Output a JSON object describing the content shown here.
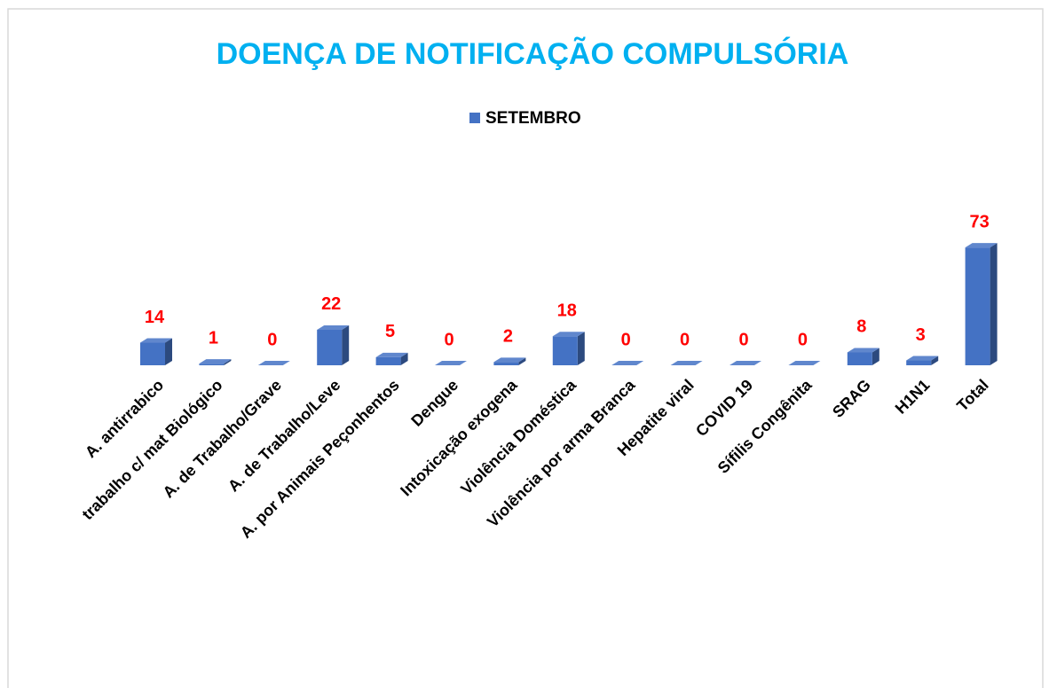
{
  "chart_data": {
    "type": "bar",
    "title": "DOENÇA DE NOTIFICAÇÃO COMPULSÓRIA",
    "categories": [
      "A. antirrabico",
      "trabalho c/ mat Biológico",
      "A. de Trabalho/Grave",
      "A. de Trabalho/Leve",
      "A. por Animais Peçonhentos",
      "Dengue",
      "Intoxicação exogena",
      "Violência Doméstica",
      "Violência por arma Branca",
      "Hepatite viral",
      "COVID 19",
      "Sífilis Congênita",
      "SRAG",
      "H1N1",
      "Total"
    ],
    "series": [
      {
        "name": "SETEMBRO",
        "color": "#4472c4",
        "values": [
          14,
          1,
          0,
          22,
          5,
          0,
          2,
          18,
          0,
          0,
          0,
          0,
          8,
          3,
          73
        ]
      }
    ],
    "legend": "top"
  }
}
